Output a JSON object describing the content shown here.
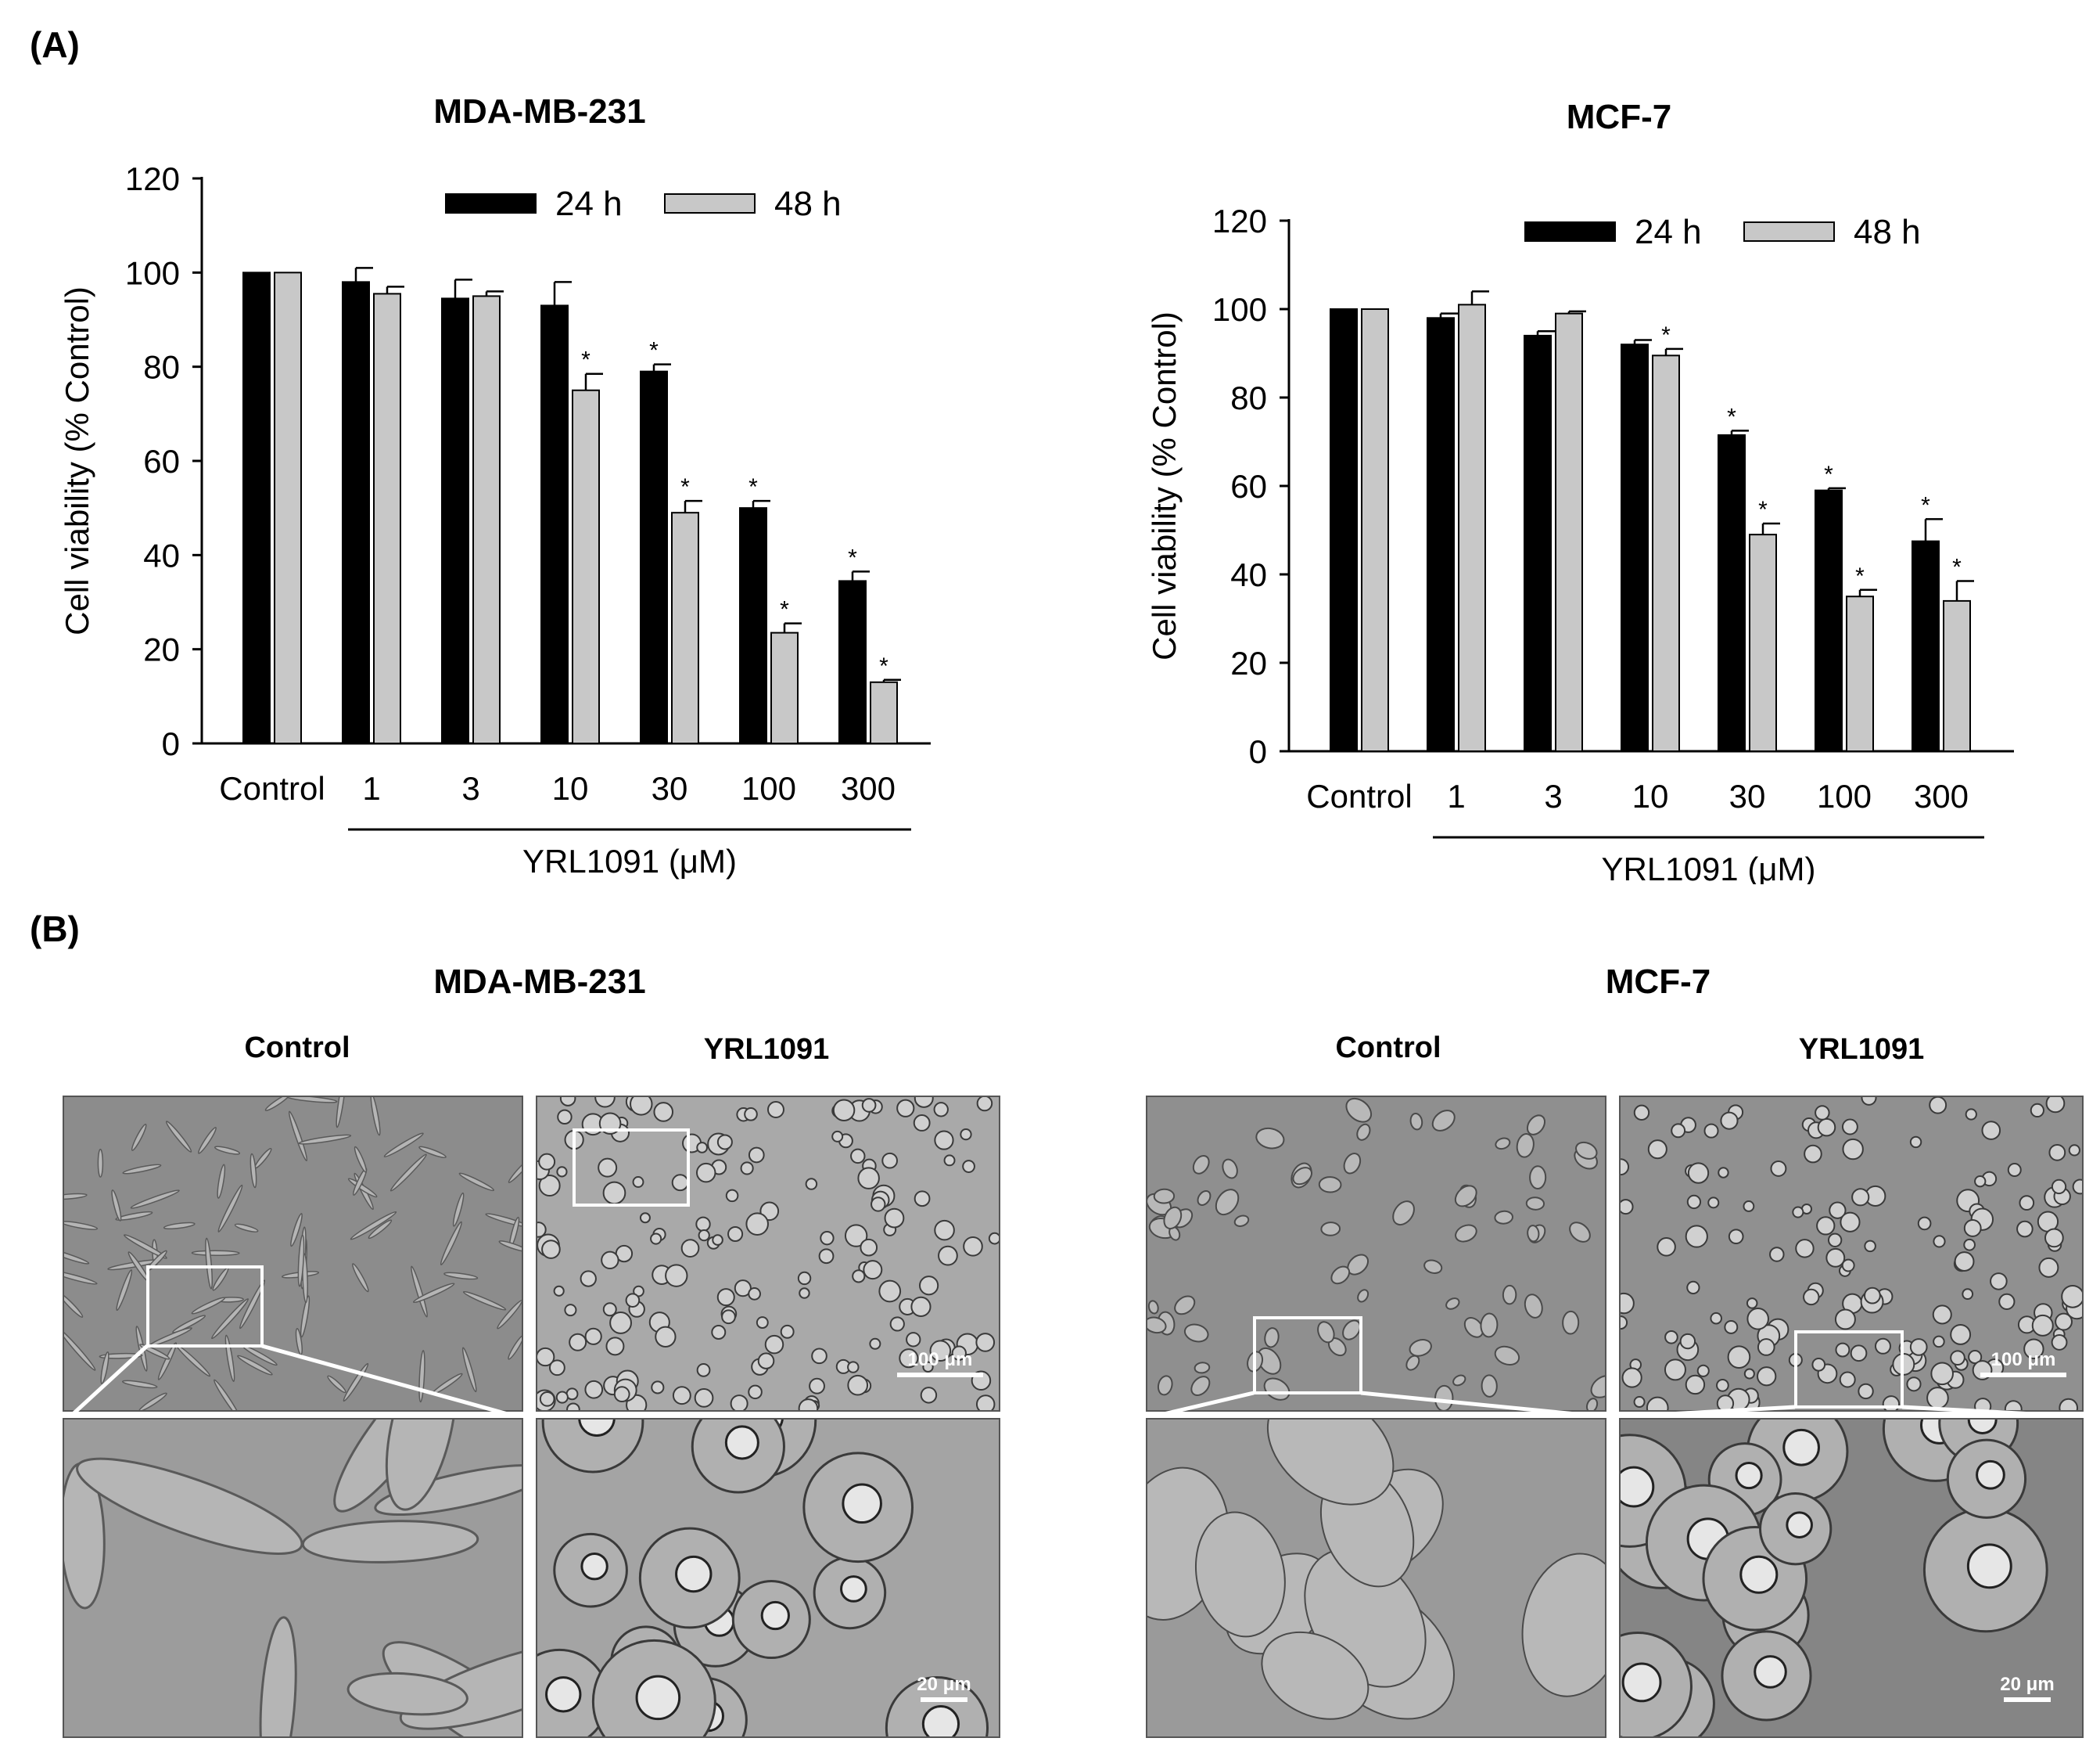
{
  "panel_a_label": "(A)",
  "panel_b_label": "(B)",
  "chart_data": [
    {
      "type": "bar",
      "title": "MDA-MB-231",
      "xlabel": "YRL1091 (μM)",
      "ylabel": "Cell viability (% Control)",
      "ylim": [
        0,
        120
      ],
      "yticks": [
        "0",
        "20",
        "40",
        "60",
        "80",
        "100",
        "120"
      ],
      "categories": [
        "Control",
        "1",
        "3",
        "10",
        "30",
        "100",
        "300"
      ],
      "legend_position": "top-center",
      "series": [
        {
          "name": "24 h",
          "color": "#000000",
          "values": [
            100,
            98,
            94.5,
            93,
            79,
            50,
            34.5
          ],
          "errors": [
            0,
            3,
            4,
            5,
            1.5,
            1.5,
            2
          ],
          "significant": [
            false,
            false,
            false,
            false,
            true,
            true,
            true
          ]
        },
        {
          "name": "48 h",
          "color": "#c8c8c8",
          "values": [
            100,
            95.5,
            95,
            75,
            49,
            23.5,
            13
          ],
          "errors": [
            0,
            1.5,
            1,
            3.5,
            2.5,
            2,
            0.5
          ],
          "significant": [
            false,
            false,
            false,
            true,
            true,
            true,
            true
          ]
        }
      ]
    },
    {
      "type": "bar",
      "title": "MCF-7",
      "xlabel": "YRL1091 (μM)",
      "ylabel": "Cell viability (% Control)",
      "ylim": [
        0,
        120
      ],
      "yticks": [
        "0",
        "20",
        "40",
        "60",
        "80",
        "100",
        "120"
      ],
      "categories": [
        "Control",
        "1",
        "3",
        "10",
        "30",
        "100",
        "300"
      ],
      "legend_position": "top-center",
      "series": [
        {
          "name": "24 h",
          "color": "#000000",
          "values": [
            100,
            98,
            94,
            92,
            71.5,
            59,
            47.5
          ],
          "errors": [
            0,
            1,
            1,
            1,
            1,
            0.5,
            5
          ],
          "significant": [
            false,
            false,
            false,
            false,
            true,
            true,
            true
          ]
        },
        {
          "name": "48 h",
          "color": "#c8c8c8",
          "values": [
            100,
            101,
            99,
            89.5,
            49,
            35,
            34
          ],
          "errors": [
            0,
            3,
            0.5,
            1.5,
            2.5,
            1.5,
            4.5
          ],
          "significant": [
            false,
            false,
            false,
            true,
            true,
            true,
            true
          ]
        }
      ]
    }
  ],
  "significance_marker": "*",
  "panel_b": {
    "left": {
      "title": "MDA-MB-231",
      "control_label": "Control",
      "treated_label": "YRL1091"
    },
    "right": {
      "title": "MCF-7",
      "control_label": "Control",
      "treated_label": "YRL1091"
    },
    "scale_low": "100 μm",
    "scale_high": "20 μm"
  }
}
